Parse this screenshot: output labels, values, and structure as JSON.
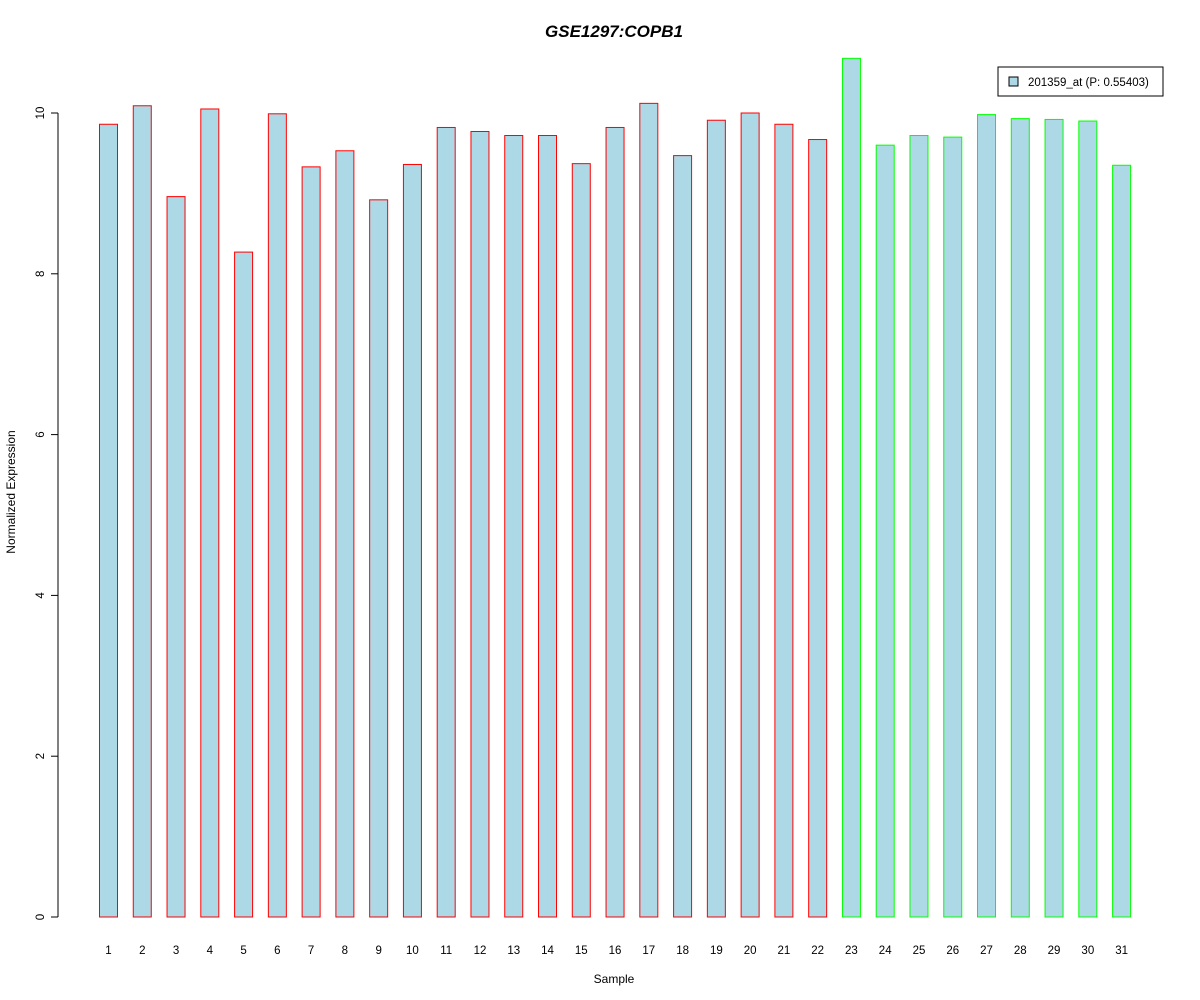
{
  "chart_data": {
    "type": "bar",
    "title": "GSE1297:COPB1",
    "xlabel": "Sample",
    "ylabel": "Normalized Expression",
    "categories": [
      "1",
      "2",
      "3",
      "4",
      "5",
      "6",
      "7",
      "8",
      "9",
      "10",
      "11",
      "12",
      "13",
      "14",
      "15",
      "16",
      "17",
      "18",
      "19",
      "20",
      "21",
      "22",
      "23",
      "24",
      "25",
      "26",
      "27",
      "28",
      "29",
      "30",
      "31"
    ],
    "series": [
      {
        "name": "201359_at (P: 0.55403)",
        "values": [
          9.86,
          10.09,
          8.96,
          10.05,
          8.27,
          9.99,
          9.33,
          9.53,
          8.92,
          9.36,
          9.82,
          9.77,
          9.72,
          9.72,
          9.37,
          9.82,
          10.12,
          9.47,
          9.91,
          10.0,
          9.86,
          9.67,
          10.68,
          9.6,
          9.72,
          9.7,
          9.98,
          9.93,
          9.92,
          9.9,
          9.35
        ]
      }
    ],
    "groups": [
      "a",
      "a",
      "a",
      "a",
      "a",
      "a",
      "a",
      "a",
      "a",
      "a",
      "a",
      "a",
      "a",
      "a",
      "a",
      "a",
      "a",
      "a",
      "a",
      "a",
      "a",
      "a",
      "b",
      "b",
      "b",
      "b",
      "b",
      "b",
      "b",
      "b",
      "b"
    ],
    "ylim": [
      0,
      10.8
    ],
    "yticks": [
      "0",
      "2",
      "4",
      "6",
      "8",
      "10"
    ],
    "grid": false,
    "legend_position": "top-right",
    "colors": {
      "bar_fill": "#add8e6",
      "group_a_border": "#ff0000",
      "group_b_border": "#00ff00",
      "title": "#0000cd",
      "axis": "#000000"
    }
  }
}
